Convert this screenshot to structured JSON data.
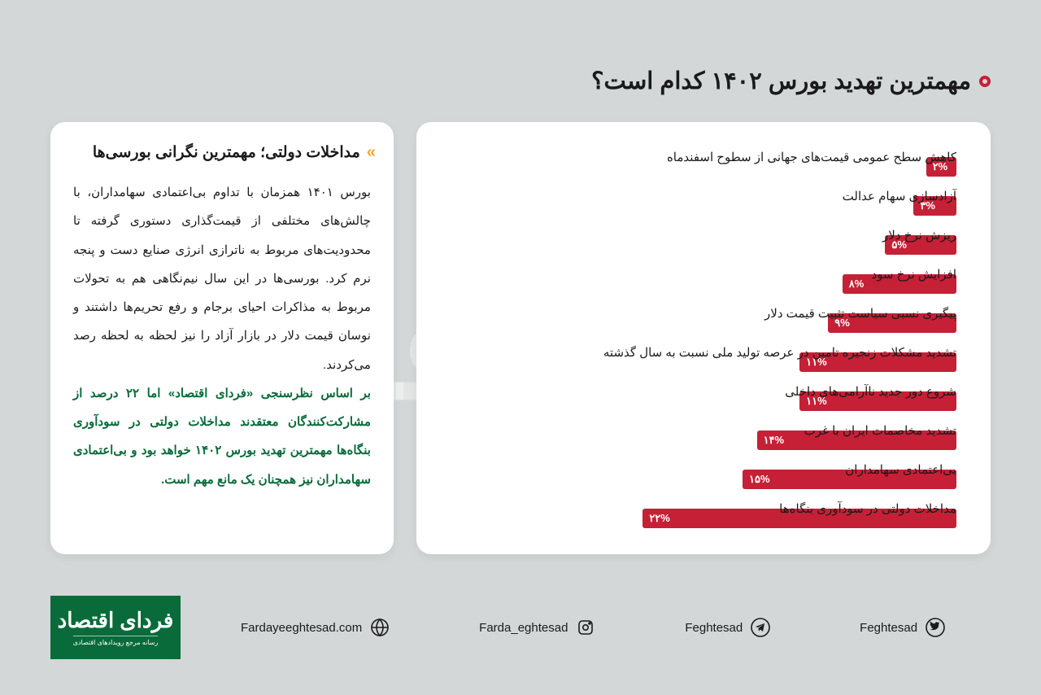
{
  "header": {
    "title": "مهمترین تهدید بورس ۱۴۰۲ کدام است؟"
  },
  "chart": {
    "type": "bar",
    "bar_color": "#c62036",
    "value_color": "#ffffff",
    "card_bg": "#ffffff",
    "max_value": 22,
    "items": [
      {
        "label": "کاهش سطح عمومی قیمت‌های جهانی از سطوح اسفندماه",
        "value_label": "۲%",
        "value": 2
      },
      {
        "label": "آزادسازی سهام عدالت",
        "value_label": "۳%",
        "value": 3
      },
      {
        "label": "ریزش نرخ دلار",
        "value_label": "۵%",
        "value": 5
      },
      {
        "label": "افزایش نرخ سود",
        "value_label": "۸%",
        "value": 8
      },
      {
        "label": "پیگیری نسبی سیاست تثبیت قیمت دلار",
        "value_label": "۹%",
        "value": 9
      },
      {
        "label": "تشدید مشکلات زنجیره تامین در عرصه تولید ملی نسبت به سال گذشته",
        "value_label": "۱۱%",
        "value": 11
      },
      {
        "label": "شروع دور جدید ناآرامی‌های داخلی",
        "value_label": "۱۱%",
        "value": 11
      },
      {
        "label": "تشدید مخاصمات ایران با غرب",
        "value_label": "۱۴%",
        "value": 14
      },
      {
        "label": "بی‌اعتمادی سهامداران",
        "value_label": "۱۵%",
        "value": 15
      },
      {
        "label": "مداخلات دولتی در سودآوری بنگاه‌ها",
        "value_label": "۲۲%",
        "value": 22
      }
    ]
  },
  "text_card": {
    "title": "مداخلات دولتی؛ مهمترین نگرانی بورسی‌ها",
    "p1": "بورس ۱۴۰۱ همزمان با تداوم بی‌اعتمادی سهامداران، با چالش‌های مختلفی از قیمت‌گذاری دستوری گرفته تا محدودیت‌های مربوط به ناترازی انرژی صنایع دست و پنجه نرم کرد. بورسی‌ها در این سال نیم‌نگاهی هم به تحولات مربوط به مذاکرات احیای برجام و رفع تحریم‌ها داشتند و نوسان قیمت دلار در بازار آزاد را نیز لحظه به لحظه رصد می‌کردند.",
    "p2": "بر اساس نظرسنجی «فردای اقتصاد» اما ۲۲ درصد از مشارکت‌کنندگان معتقدند مداخلات دولتی در سودآوری بنگاه‌ها مهمترین تهدید بورس ۱۴۰۲ خواهد بود و بی‌اعتمادی سهامداران نیز همچنان یک مانع مهم است."
  },
  "footer": {
    "socials": [
      {
        "icon": "twitter",
        "handle": "Feghtesad"
      },
      {
        "icon": "telegram",
        "handle": "Feghtesad"
      },
      {
        "icon": "instagram",
        "handle": "Farda_eghtesad"
      },
      {
        "icon": "web",
        "handle": "Fardayeeghtesad.com"
      }
    ],
    "logo_main": "فردای اقتصاد",
    "logo_sub": "رسانه مرجع رویدادهای اقتصادی"
  },
  "watermark": "فردای اقتصاد",
  "colors": {
    "page_bg": "#d4d7d7",
    "accent_red": "#c62036",
    "accent_green": "#0a6b3a",
    "accent_orange": "#f5a623",
    "text": "#1a1a1a"
  }
}
